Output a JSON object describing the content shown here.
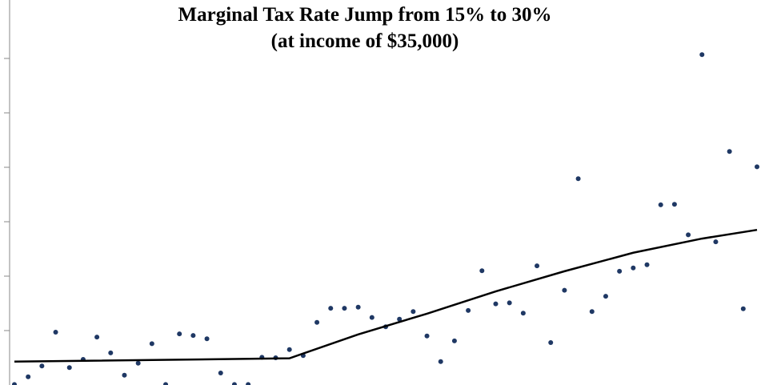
{
  "chart_data": {
    "type": "scatter",
    "title": "Marginal Tax Rate Jump from 15% to 30%",
    "subtitle": "(at income of $35,000)",
    "xlim": [
      0,
      54
    ],
    "ylim": [
      0,
      7
    ],
    "yticks": [
      1,
      2,
      3,
      4,
      5,
      6
    ],
    "series": [
      {
        "type": "scatter",
        "color": "#1f3864",
        "x": [
          0,
          1,
          2,
          3,
          4,
          5,
          6,
          7,
          8,
          9,
          10,
          11,
          12,
          13,
          14,
          15,
          16,
          17,
          18,
          19,
          20,
          21,
          22,
          23,
          24,
          25,
          26,
          27,
          28,
          29,
          30,
          31,
          32,
          33,
          34,
          35,
          36,
          37,
          38,
          39,
          40,
          41,
          42,
          43,
          44,
          45,
          46,
          47,
          48,
          49,
          50,
          51,
          52,
          53,
          54
        ],
        "values": [
          0.01,
          0.15,
          0.35,
          0.97,
          0.32,
          0.47,
          0.88,
          0.59,
          0.18,
          0.4,
          0.76,
          0.01,
          0.94,
          0.91,
          0.85,
          0.22,
          0.01,
          0.01,
          0.51,
          0.5,
          0.65,
          0.54,
          1.15,
          1.41,
          1.41,
          1.43,
          1.24,
          1.07,
          1.21,
          1.35,
          0.9,
          0.43,
          0.81,
          1.37,
          2.1,
          1.49,
          1.51,
          1.32,
          2.19,
          0.78,
          1.74,
          3.79,
          1.35,
          1.63,
          2.09,
          2.15,
          2.21,
          3.31,
          3.32,
          2.76,
          6.07,
          2.63,
          4.29,
          1.4,
          4.01
        ]
      },
      {
        "type": "line",
        "color": "#000000",
        "x": [
          0,
          20,
          25,
          30,
          35,
          40,
          45,
          50,
          54
        ],
        "values": [
          0.43,
          0.49,
          0.93,
          1.31,
          1.72,
          2.09,
          2.43,
          2.69,
          2.85
        ]
      }
    ]
  }
}
